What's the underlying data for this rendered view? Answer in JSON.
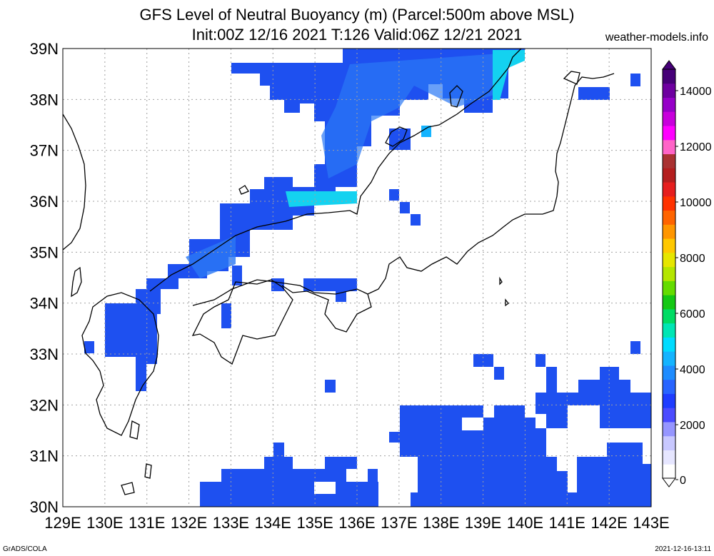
{
  "title_line1": "GFS Level of Neutral Buoyancy (m) (Parcel:500m above MSL)",
  "title_line2": "Init:00Z 12/16 2021 T:126 Valid:06Z 12/21 2021",
  "site": "weather-models.info",
  "footer_left": "GrADS/COLA",
  "footer_right": "2021-12-16-13:11",
  "lon_labels": [
    "129E",
    "130E",
    "131E",
    "132E",
    "133E",
    "134E",
    "135E",
    "136E",
    "137E",
    "138E",
    "139E",
    "140E",
    "141E",
    "142E",
    "143E"
  ],
  "lat_labels": [
    "30N",
    "31N",
    "32N",
    "33N",
    "34N",
    "35N",
    "36N",
    "37N",
    "38N",
    "39N"
  ],
  "colorbar_labels": [
    "0",
    "2000",
    "4000",
    "6000",
    "8000",
    "10000",
    "12000",
    "14000"
  ],
  "colorbar_colors": [
    "#ffffff",
    "#e6e6ff",
    "#c8c8ff",
    "#9696ff",
    "#4b4bff",
    "#1e3cff",
    "#2864ff",
    "#1e8cff",
    "#14b4ff",
    "#00dcff",
    "#00e6b4",
    "#00dc64",
    "#14c814",
    "#64dc00",
    "#b4e600",
    "#e6e600",
    "#ffc800",
    "#ff9600",
    "#ff6400",
    "#ff3200",
    "#e61e1e",
    "#b41e1e",
    "#aa3232",
    "#ff64c8",
    "#ff00ff",
    "#c800dc",
    "#9600c8",
    "#6e00a0",
    "#460078"
  ],
  "legend_colors": {
    "main_blue": "#1e50f0",
    "light_blue": "#2a78f5",
    "cyan": "#14d2f0"
  }
}
